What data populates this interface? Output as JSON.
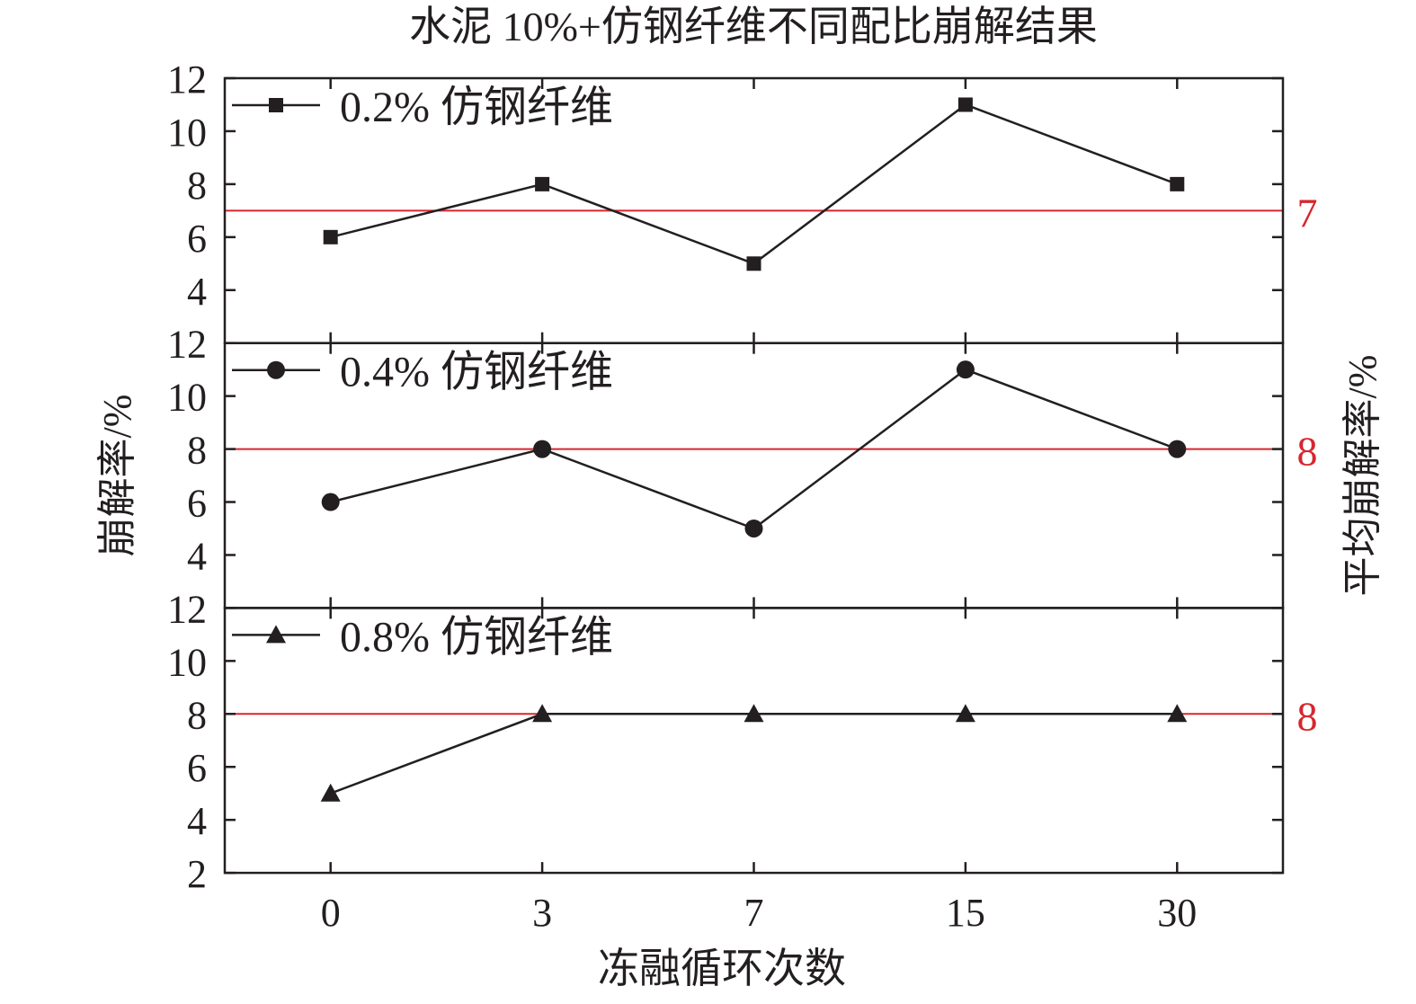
{
  "chart_data": {
    "type": "line",
    "title": "水泥 10%+仿钢纤维不同配比崩解结果",
    "xlabel": "冻融循环次数",
    "ylabel": "崩解率/%",
    "ylabel_right": "平均崩解率/%",
    "categories": [
      "0",
      "3",
      "7",
      "15",
      "30"
    ],
    "ylim": [
      2,
      12
    ],
    "yticks": [
      2,
      4,
      6,
      8,
      10,
      12
    ],
    "grid": false,
    "legend_placement": "top-left",
    "colors": {
      "series": "#231f20",
      "mean_line": "#d7262e"
    },
    "panels": [
      {
        "name": "0.2% 仿钢纤维",
        "marker": "square",
        "values": [
          6,
          8,
          5,
          11,
          8
        ],
        "mean_line": 7,
        "mean_label": "7"
      },
      {
        "name": "0.4% 仿钢纤维",
        "marker": "circle",
        "values": [
          6,
          8,
          5,
          11,
          8
        ],
        "mean_line": 8,
        "mean_label": "8"
      },
      {
        "name": "0.8% 仿钢纤维",
        "marker": "triangle",
        "values": [
          5,
          8,
          8,
          8,
          8
        ],
        "mean_line": 8,
        "mean_label": "8"
      }
    ]
  }
}
